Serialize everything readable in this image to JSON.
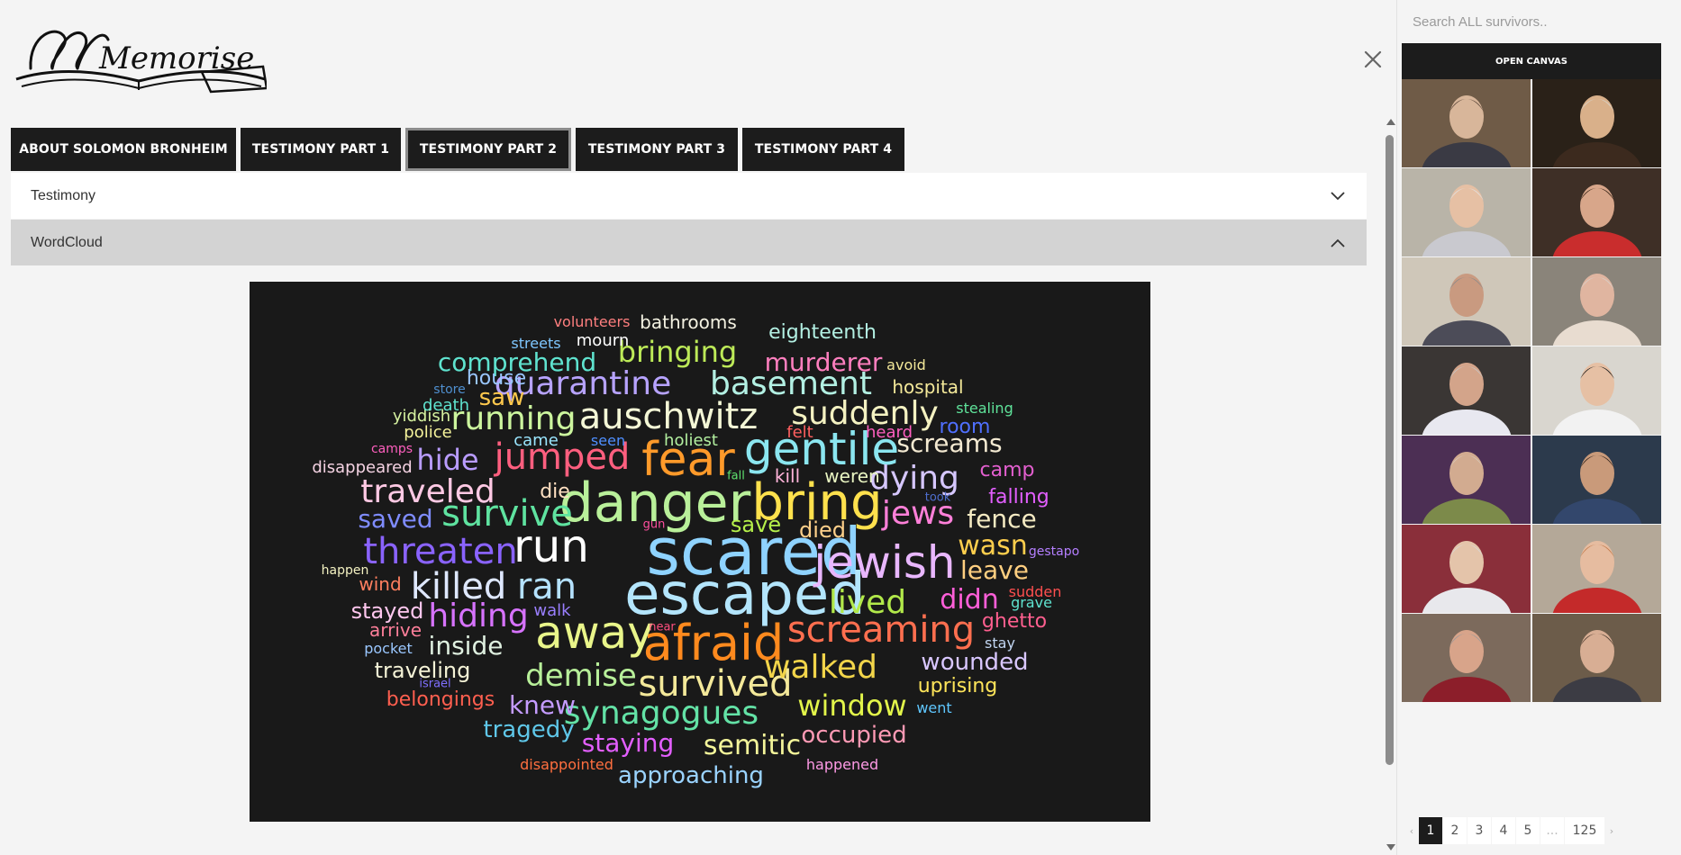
{
  "logo": {
    "text": "Memorise"
  },
  "tabs": [
    {
      "label": "ABOUT SOLOMON BRONHEIM",
      "width": 250,
      "active": false
    },
    {
      "label": "TESTIMONY PART 1",
      "width": 178,
      "active": false
    },
    {
      "label": "TESTIMONY PART 2",
      "width": 184,
      "active": true
    },
    {
      "label": "TESTIMONY PART 3",
      "width": 180,
      "active": false
    },
    {
      "label": "TESTIMONY PART 4",
      "width": 180,
      "active": false
    }
  ],
  "accordion": {
    "testimony_label": "Testimony",
    "wordcloud_label": "WordCloud"
  },
  "icons": {
    "close": "close-icon",
    "expand": "chevron-down-icon",
    "collapse": "chevron-up-icon"
  },
  "wordcloud": {
    "words": [
      {
        "t": "scared",
        "c": "#8fd3ff",
        "s": 72
      },
      {
        "t": "escaped",
        "c": "#b3e5fc",
        "s": 64
      },
      {
        "t": "danger",
        "c": "#b9f09a",
        "s": 60
      },
      {
        "t": "bring",
        "c": "#ffe14d",
        "s": 56
      },
      {
        "t": "afraid",
        "c": "#ff8a1e",
        "s": 54
      },
      {
        "t": "fear",
        "c": "#ff9a2a",
        "s": 52
      },
      {
        "t": "gentile",
        "c": "#8be6f0",
        "s": 50
      },
      {
        "t": "run",
        "c": "#ffffff",
        "s": 50
      },
      {
        "t": "away",
        "c": "#e9f58a",
        "s": 50
      },
      {
        "t": "jewish",
        "c": "#e9b7ff",
        "s": 50
      },
      {
        "t": "threaten",
        "c": "#8a63ff",
        "s": 40
      },
      {
        "t": "killed",
        "c": "#dfe8ff",
        "s": 40
      },
      {
        "t": "ran",
        "c": "#b5e2ff",
        "s": 40
      },
      {
        "t": "survive",
        "c": "#5fe3a0",
        "s": 40
      },
      {
        "t": "jumped",
        "c": "#ff5f7f",
        "s": 40
      },
      {
        "t": "auschwitz",
        "c": "#f4f7d6",
        "s": 40
      },
      {
        "t": "screaming",
        "c": "#ff6f4f",
        "s": 40
      },
      {
        "t": "survived",
        "c": "#f4e99a",
        "s": 40
      },
      {
        "t": "walked",
        "c": "#f2d54a",
        "s": 36
      },
      {
        "t": "synagogues",
        "c": "#63e2a6",
        "s": 36
      },
      {
        "t": "jews",
        "c": "#ff80d9",
        "s": 36
      },
      {
        "t": "dying",
        "c": "#d6c7ff",
        "s": 36
      },
      {
        "t": "suddenly",
        "c": "#f4f2c2",
        "s": 36
      },
      {
        "t": "quarantine",
        "c": "#b7a3ff",
        "s": 36
      },
      {
        "t": "basement",
        "c": "#b3f0e3",
        "s": 36
      },
      {
        "t": "running",
        "c": "#ccf59e",
        "s": 36
      },
      {
        "t": "hiding",
        "c": "#d773ff",
        "s": 36
      },
      {
        "t": "traveled",
        "c": "#ffc9e4",
        "s": 36
      },
      {
        "t": "lived",
        "c": "#b2e94a",
        "s": 36
      },
      {
        "t": "demise",
        "c": "#b8f09a",
        "s": 34
      },
      {
        "t": "window",
        "c": "#e2f54a",
        "s": 32
      },
      {
        "t": "bringing",
        "c": "#bdea58",
        "s": 32
      },
      {
        "t": "hide",
        "c": "#b99cff",
        "s": 32
      },
      {
        "t": "comprehend",
        "c": "#5fe3cf",
        "s": 28
      },
      {
        "t": "screams",
        "c": "#f4ead2",
        "s": 28
      },
      {
        "t": "murderer",
        "c": "#ff7fbf",
        "s": 28
      },
      {
        "t": "wasn",
        "c": "#ffcf4d",
        "s": 30
      },
      {
        "t": "leave",
        "c": "#ffcf80",
        "s": 28
      },
      {
        "t": "didn",
        "c": "#ff5fd9",
        "s": 30
      },
      {
        "t": "semitic",
        "c": "#f4f59a",
        "s": 30
      },
      {
        "t": "staying",
        "c": "#e35fff",
        "s": 28
      },
      {
        "t": "knew",
        "c": "#c59cff",
        "s": 28
      },
      {
        "t": "tragedy",
        "c": "#5fc7e9",
        "s": 26
      },
      {
        "t": "inside",
        "c": "#dff0e0",
        "s": 28
      },
      {
        "t": "saved",
        "c": "#7f8cff",
        "s": 28
      },
      {
        "t": "fence",
        "c": "#f4eac2",
        "s": 28
      },
      {
        "t": "wounded",
        "c": "#d9c7ff",
        "s": 26
      },
      {
        "t": "occupied",
        "c": "#ff9ab5",
        "s": 26
      },
      {
        "t": "approaching",
        "c": "#9ad3ff",
        "s": 26
      },
      {
        "t": "save",
        "c": "#b5f04a",
        "s": 24
      },
      {
        "t": "died",
        "c": "#ffd08a",
        "s": 24
      },
      {
        "t": "stayed",
        "c": "#ffc7ee",
        "s": 24
      },
      {
        "t": "traveling",
        "c": "#f4f2d6",
        "s": 24
      },
      {
        "t": "belongings",
        "c": "#ff5f4f",
        "s": 22
      },
      {
        "t": "uprising",
        "c": "#ffe55a",
        "s": 22
      },
      {
        "t": "ghetto",
        "c": "#ff5f8f",
        "s": 22
      },
      {
        "t": "falling",
        "c": "#e35fff",
        "s": 22
      },
      {
        "t": "camp",
        "c": "#e35fcf",
        "s": 22
      },
      {
        "t": "eighteenth",
        "c": "#b3f0e3",
        "s": 22
      },
      {
        "t": "bathrooms",
        "c": "#f4f2e2",
        "s": 20
      },
      {
        "t": "house",
        "c": "#9ac7ff",
        "s": 22
      },
      {
        "t": "saw",
        "c": "#ffc94d",
        "s": 26
      },
      {
        "t": "hospital",
        "c": "#f4e99a",
        "s": 20
      },
      {
        "t": "room",
        "c": "#4f6fff",
        "s": 22
      },
      {
        "t": "kill",
        "c": "#ffb3d9",
        "s": 20
      },
      {
        "t": "weren",
        "c": "#e9f5c2",
        "s": 20
      },
      {
        "t": "die",
        "c": "#ffe0c2",
        "s": 22
      },
      {
        "t": "holiest",
        "c": "#b3f0a0",
        "s": 18
      },
      {
        "t": "came",
        "c": "#9ae6ff",
        "s": 18
      },
      {
        "t": "seen",
        "c": "#4f8fff",
        "s": 16
      },
      {
        "t": "felt",
        "c": "#ff5f5f",
        "s": 18
      },
      {
        "t": "heard",
        "c": "#ff5fbf",
        "s": 18
      },
      {
        "t": "disappeared",
        "c": "#f4d2e2",
        "s": 18
      },
      {
        "t": "police",
        "c": "#f4f29a",
        "s": 18
      },
      {
        "t": "yiddish",
        "c": "#d6f2a0",
        "s": 18
      },
      {
        "t": "death",
        "c": "#5fe3cf",
        "s": 18
      },
      {
        "t": "mourn",
        "c": "#ffffff",
        "s": 18
      },
      {
        "t": "streets",
        "c": "#7fc7ff",
        "s": 16
      },
      {
        "t": "volunteers",
        "c": "#ff7f7f",
        "s": 16
      },
      {
        "t": "avoid",
        "c": "#f4e99a",
        "s": 16
      },
      {
        "t": "stealing",
        "c": "#5fe39a",
        "s": 16
      },
      {
        "t": "wind",
        "c": "#ff7f5f",
        "s": 20
      },
      {
        "t": "arrive",
        "c": "#ff7f9a",
        "s": 20
      },
      {
        "t": "pocket",
        "c": "#9ac7ff",
        "s": 16
      },
      {
        "t": "walk",
        "c": "#9a7fff",
        "s": 18
      },
      {
        "t": "stay",
        "c": "#c2d6f2",
        "s": 16
      },
      {
        "t": "grave",
        "c": "#5fe3cf",
        "s": 16
      },
      {
        "t": "sudden",
        "c": "#ff4f4f",
        "s": 16
      },
      {
        "t": "went",
        "c": "#5fc7ff",
        "s": 16
      },
      {
        "t": "happened",
        "c": "#ff9ae6",
        "s": 16
      },
      {
        "t": "disappointed",
        "c": "#ff6f3f",
        "s": 16
      },
      {
        "t": "camps",
        "c": "#ff5fbf",
        "s": 14
      },
      {
        "t": "store",
        "c": "#4f8fcf",
        "s": 14
      },
      {
        "t": "fall",
        "c": "#5fe36f",
        "s": 13
      },
      {
        "t": "took",
        "c": "#4f6fcf",
        "s": 13
      },
      {
        "t": "gun",
        "c": "#ff4f9f",
        "s": 13
      },
      {
        "t": "happen",
        "c": "#f4f2c2",
        "s": 14
      },
      {
        "t": "gestapo",
        "c": "#b57fff",
        "s": 14
      },
      {
        "t": "israel",
        "c": "#7f6fff",
        "s": 13
      },
      {
        "t": "near",
        "c": "#ff4f7f",
        "s": 13
      }
    ]
  },
  "sidebar": {
    "search_placeholder": "Search ALL survivors..",
    "open_canvas_label": "OPEN CANVAS",
    "thumbnails": [
      {
        "bg": "#6f5b47",
        "face": "#d8b69a",
        "shirt": "#3a3a44",
        "hair": "#5a463a"
      },
      {
        "bg": "#2a2118",
        "face": "#d9b08a",
        "shirt": "#3c2a1e",
        "hair": "#d8d2c8"
      },
      {
        "bg": "#b9b4a8",
        "face": "#e6c0a4",
        "shirt": "#c9c9cf",
        "hair": "#e2e2e2"
      },
      {
        "bg": "#3e2f26",
        "face": "#d8a68a",
        "shirt": "#c92d2d",
        "hair": "#3a2618"
      },
      {
        "bg": "#cfc7b9",
        "face": "#c99a80",
        "shirt": "#4c4c58",
        "hair": "#8a8a8a"
      },
      {
        "bg": "#8a847a",
        "face": "#e0b5a0",
        "shirt": "#e8dcd0",
        "hair": "#d8d0c8"
      },
      {
        "bg": "#3a3634",
        "face": "#d3a48a",
        "shirt": "#e8e8f0",
        "hair": "#c8c8c8"
      },
      {
        "bg": "#d9d6cf",
        "face": "#e6c0a4",
        "shirt": "#f2f2f2",
        "hair": "#1a1a1a"
      },
      {
        "bg": "#4c2f54",
        "face": "#d2ab90",
        "shirt": "#7c8a4a",
        "hair": "#d8c8b8"
      },
      {
        "bg": "#2c3a4c",
        "face": "#c99a7a",
        "shirt": "#33476c",
        "hair": "#2a1e18"
      },
      {
        "bg": "#8a2f3a",
        "face": "#e4c4aa",
        "shirt": "#e8e8ec",
        "hair": "#d8d8d8"
      },
      {
        "bg": "#b4a898",
        "face": "#e6bca0",
        "shirt": "#c42a2a",
        "hair": "#c27a4a"
      },
      {
        "bg": "#7c6a5c",
        "face": "#d8a48a",
        "shirt": "#8c1e2a",
        "hair": "#9a9a9a"
      },
      {
        "bg": "#6c5c4a",
        "face": "#d8ae94",
        "shirt": "#3c3c44",
        "hair": "#4a3a2e"
      }
    ],
    "pagination": {
      "prev": "‹",
      "pages": [
        "1",
        "2",
        "3",
        "4",
        "5"
      ],
      "ellipsis": "...",
      "last": "125",
      "next": "›",
      "active": "1"
    }
  }
}
